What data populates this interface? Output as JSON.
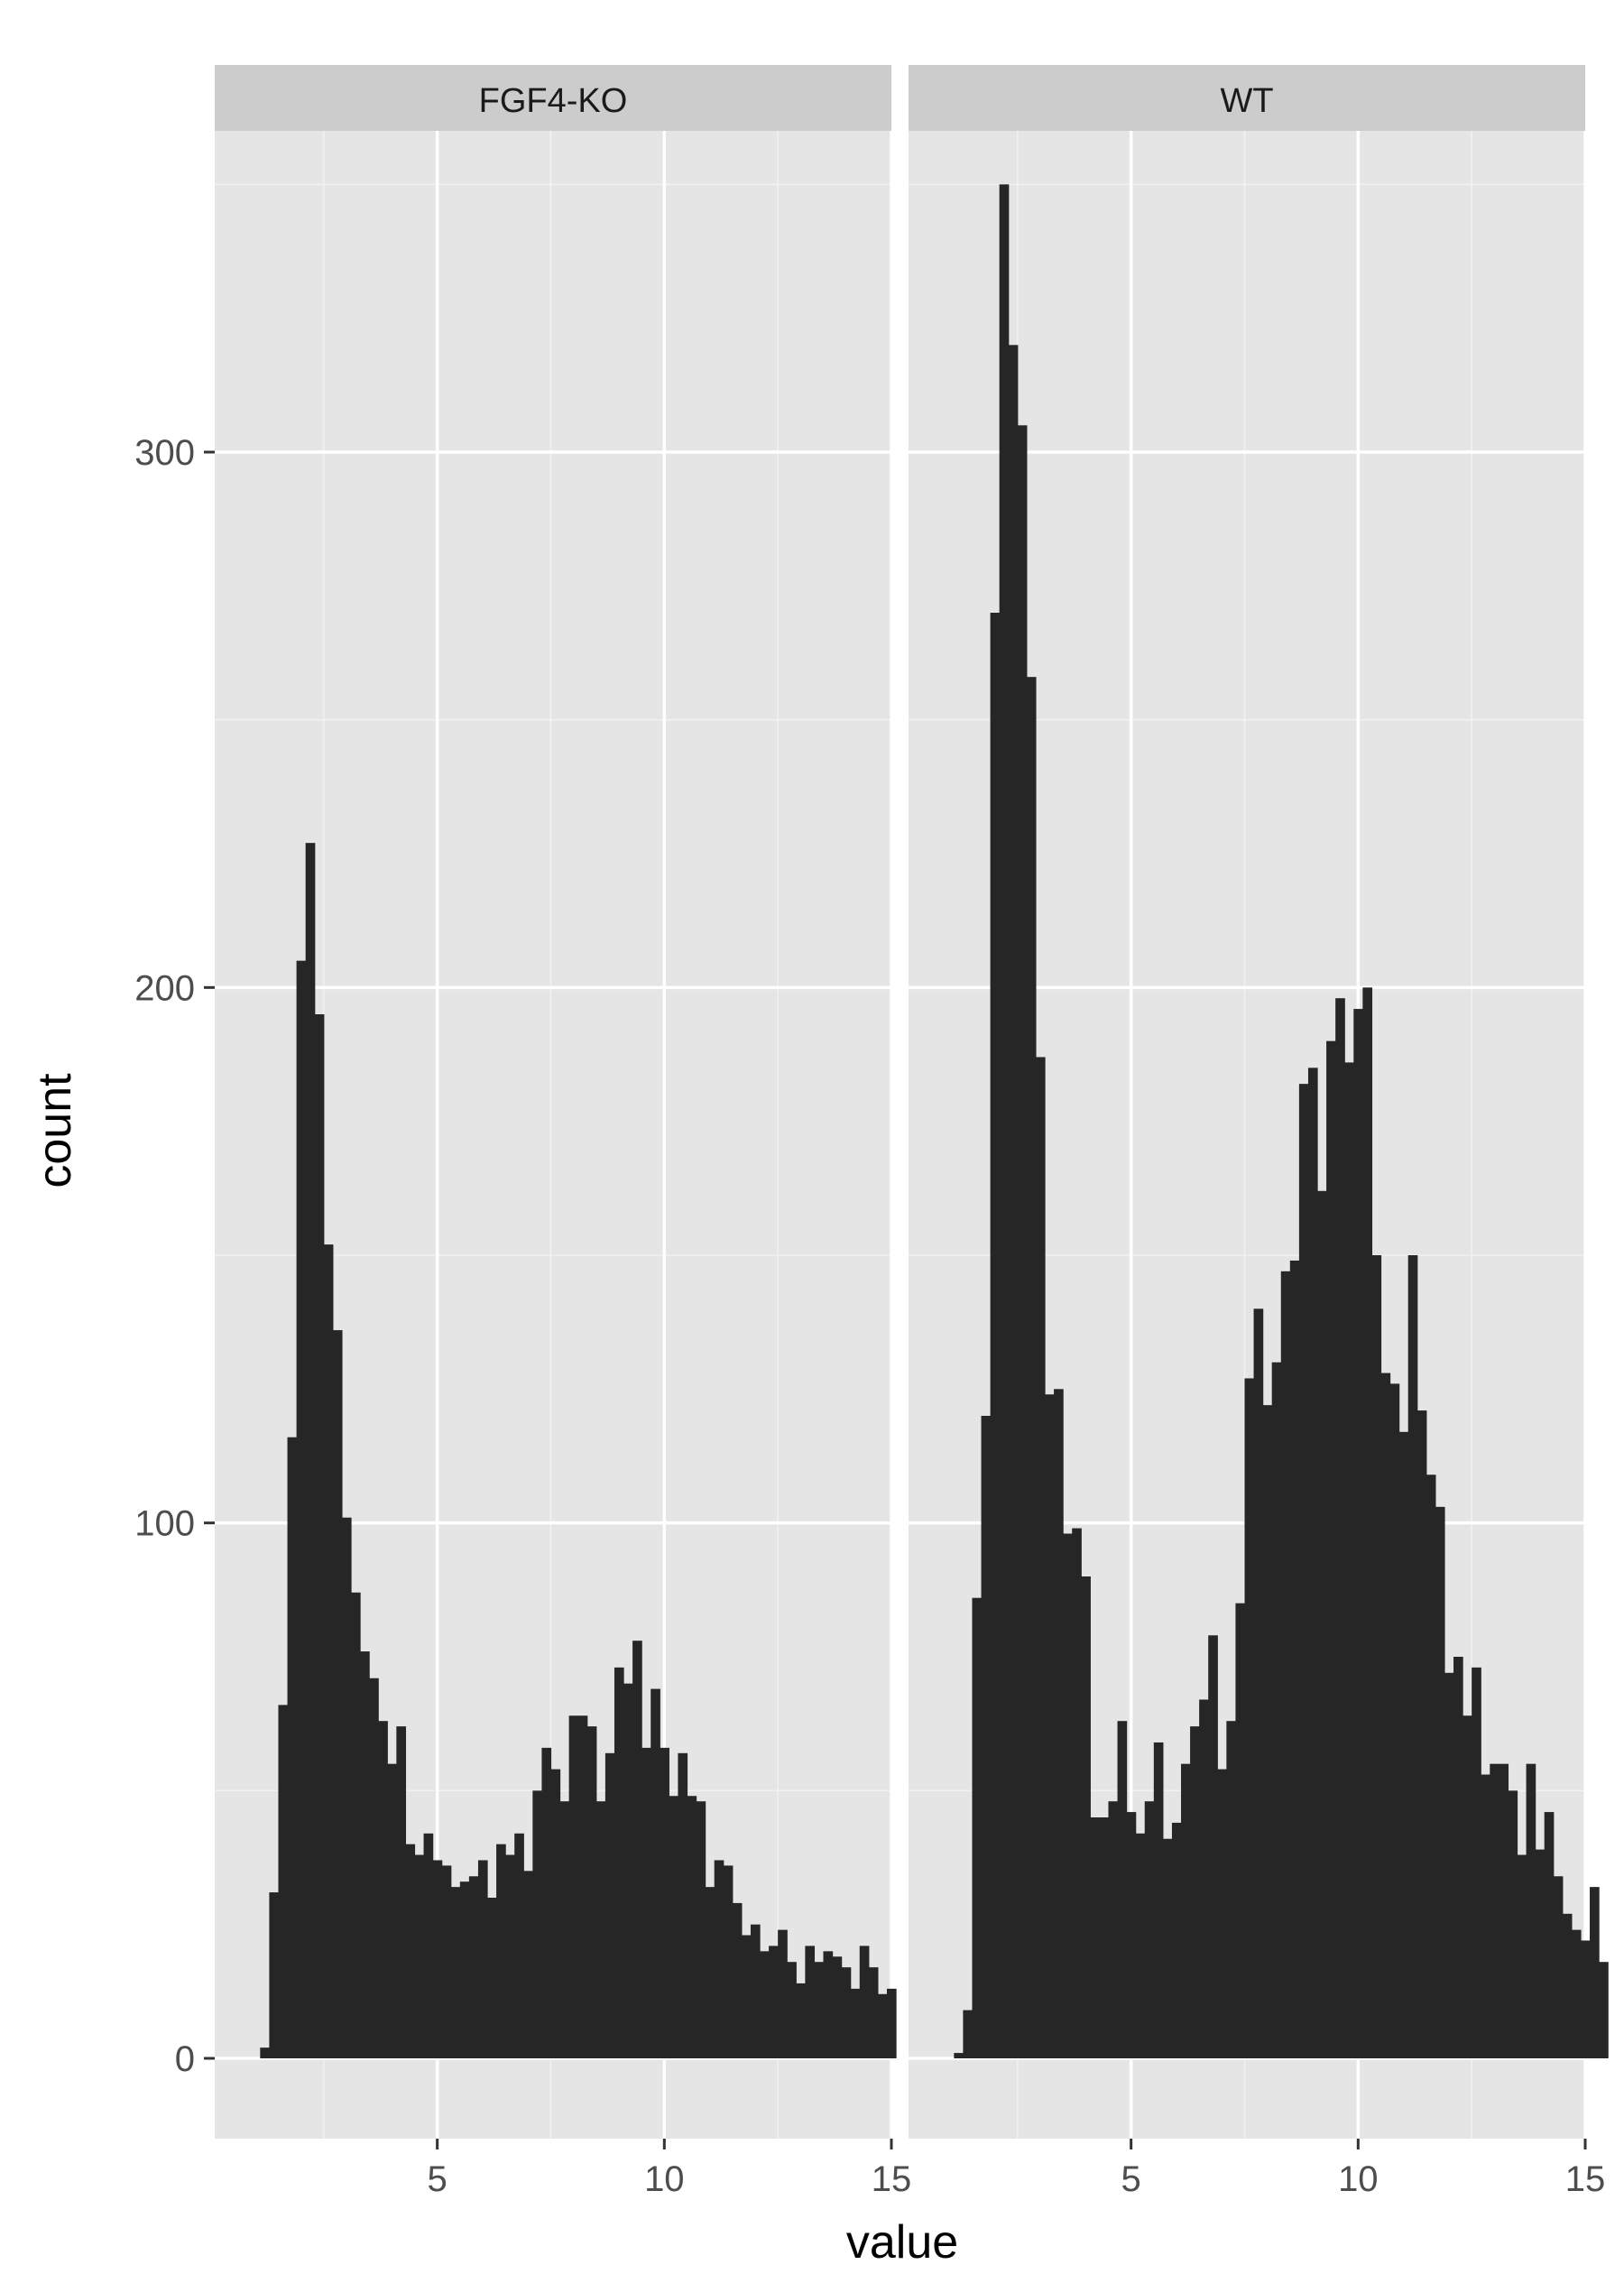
{
  "chart_data": {
    "type": "bar",
    "subtype": "faceted-histogram",
    "xlabel": "value",
    "ylabel": "count",
    "xlim": [
      0.1,
      15
    ],
    "ylim": [
      -15,
      360
    ],
    "x_ticks": [
      5,
      10,
      15
    ],
    "y_ticks": [
      0,
      100,
      200,
      300
    ],
    "x_tick_labels": [
      "5",
      "10",
      "15"
    ],
    "y_tick_labels": [
      "0",
      "100",
      "200",
      "300"
    ],
    "grid": true,
    "bin_width": 0.2,
    "colors": {
      "panel": "#e5e5e5",
      "strip": "#cccccc",
      "bar": "#262626",
      "grid_major": "#ffffff",
      "grid_minor": "#f2f2f2"
    },
    "facets": [
      {
        "name": "FGF4-KO",
        "x_start": 1.1,
        "values": [
          2,
          31,
          66,
          116,
          205,
          227,
          195,
          152,
          136,
          101,
          87,
          76,
          71,
          63,
          55,
          62,
          40,
          38,
          42,
          37,
          36,
          32,
          33,
          34,
          37,
          30,
          40,
          38,
          42,
          35,
          50,
          58,
          54,
          48,
          64,
          64,
          62,
          48,
          57,
          73,
          70,
          78,
          58,
          69,
          58,
          49,
          57,
          49,
          48,
          32,
          37,
          36,
          29,
          23,
          25,
          20,
          21,
          24,
          18,
          14,
          21,
          18,
          20,
          19,
          17,
          13,
          21,
          17,
          12,
          13
        ]
      },
      {
        "name": "WT",
        "x_start": 1.1,
        "values": [
          1,
          9,
          86,
          120,
          270,
          350,
          320,
          305,
          258,
          187,
          124,
          125,
          98,
          99,
          90,
          45,
          45,
          48,
          63,
          46,
          42,
          48,
          59,
          41,
          44,
          55,
          62,
          67,
          79,
          54,
          63,
          85,
          127,
          140,
          122,
          130,
          147,
          149,
          182,
          185,
          162,
          190,
          198,
          186,
          196,
          200,
          150,
          128,
          126,
          117,
          150,
          121,
          109,
          103,
          72,
          75,
          64,
          73,
          53,
          55,
          55,
          50,
          38,
          55,
          39,
          46,
          34,
          27,
          24,
          22,
          32,
          18
        ]
      }
    ]
  }
}
